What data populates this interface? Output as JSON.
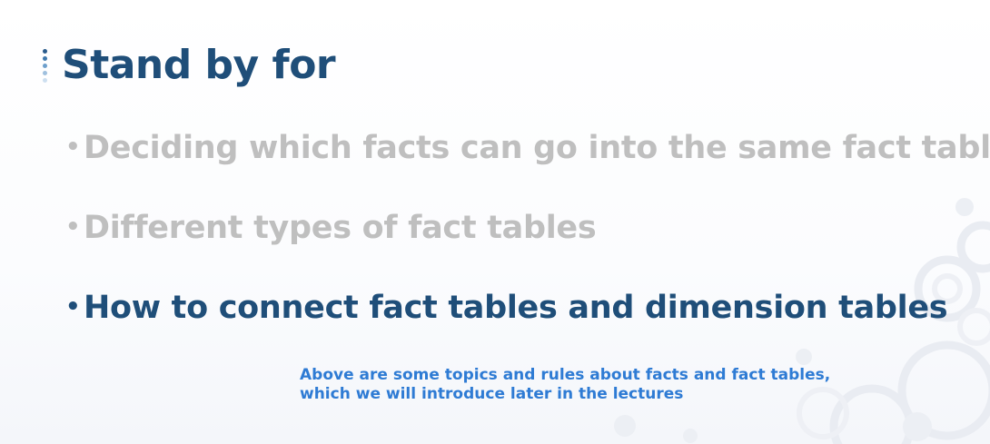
{
  "slide": {
    "title": "Stand by for",
    "bullets": [
      {
        "text": "Deciding which facts can go into the same fact table",
        "state": "muted"
      },
      {
        "text": "Different types of fact tables",
        "state": "muted"
      },
      {
        "text": "How to connect fact tables and dimension tables",
        "state": "active"
      }
    ],
    "note_lines": [
      "Above are some topics and rules about facts and fact tables,",
      "which we will introduce later in the lectures"
    ]
  },
  "colors": {
    "title": "#1f4e79",
    "muted_bullet": "#bfbfbf",
    "active_bullet": "#1f4e79",
    "note": "#2e7bd4"
  }
}
